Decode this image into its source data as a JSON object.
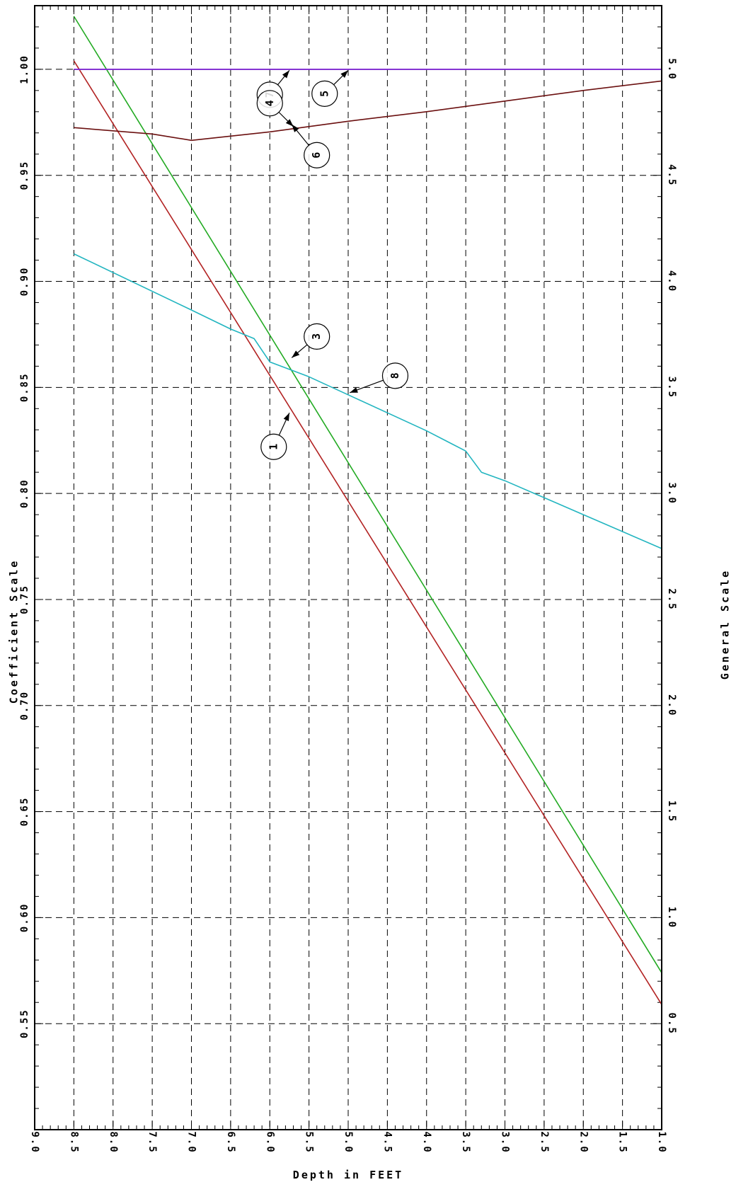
{
  "chart_data": {
    "type": "line",
    "orientation": "rotated",
    "xlabel": "Depth in FEET",
    "ylabel_left": "Coefficient Scale",
    "ylabel_right": "General Scale",
    "xlim": [
      1.0,
      9.0
    ],
    "ylim_left": [
      0.5,
      1.03
    ],
    "ylim_right": [
      0.0,
      5.3
    ],
    "x_ticks": [
      "9.0",
      "8.5",
      "8.0",
      "7.5",
      "7.0",
      "6.5",
      "6.0",
      "5.5",
      "5.0",
      "4.5",
      "4.0",
      "3.5",
      "3.0",
      "2.5",
      "2.0",
      "1.5",
      "1.0"
    ],
    "left_ticks": [
      "0.55",
      "0.60",
      "0.65",
      "0.70",
      "0.75",
      "0.80",
      "0.85",
      "0.90",
      "0.95",
      "1.00"
    ],
    "right_ticks": [
      "0.5",
      "1.0",
      "1.5",
      "2.0",
      "2.5",
      "3.0",
      "3.5",
      "4.0",
      "4.5",
      "5.0"
    ],
    "grid": true,
    "series": [
      {
        "marker": "1",
        "color": "#b22222",
        "scale": "coefficient",
        "x": [
          8.5,
          1.0
        ],
        "y": [
          1.004,
          0.559
        ]
      },
      {
        "marker": "3",
        "color": "#22aa22",
        "scale": "coefficient",
        "x": [
          8.5,
          1.0
        ],
        "y": [
          1.025,
          0.574
        ]
      },
      {
        "marker": "8",
        "color": "#22b5c0",
        "scale": "coefficient",
        "x": [
          8.5,
          7.0,
          6.5,
          6.2,
          6.0,
          5.5,
          5.0,
          4.0,
          3.5,
          3.3,
          3.0,
          2.0,
          1.0
        ],
        "y": [
          0.913,
          0.8865,
          0.8775,
          0.873,
          0.862,
          0.855,
          0.8465,
          0.8295,
          0.82,
          0.81,
          0.806,
          0.79,
          0.774
        ]
      },
      {
        "marker": "6",
        "color": "#6b1010",
        "scale": "coefficient",
        "x": [
          8.5,
          7.5,
          7.0,
          6.0,
          5.0,
          4.0,
          3.0,
          2.0,
          1.0
        ],
        "y": [
          0.9725,
          0.9695,
          0.9665,
          0.9705,
          0.9755,
          0.98,
          0.985,
          0.99,
          0.9945
        ]
      },
      {
        "marker": "4",
        "color": "#1a1a1a",
        "scale": "coefficient",
        "x": [
          8.5,
          1.0
        ],
        "y": [
          1.0,
          1.0
        ]
      },
      {
        "marker": "5",
        "color": "#6a3da0",
        "scale": "coefficient",
        "x": [
          8.5,
          1.0
        ],
        "y": [
          1.0,
          1.0
        ]
      },
      {
        "marker": "7",
        "color": "#8a2be2",
        "scale": "coefficient",
        "x": [
          8.5,
          1.0
        ],
        "y": [
          1.0,
          1.0
        ]
      }
    ],
    "annotations": [
      {
        "label": "1",
        "x": 5.95,
        "y": 0.822,
        "point_x": 5.75,
        "point_y": 0.838
      },
      {
        "label": "3",
        "x": 5.4,
        "y": 0.874,
        "point_x": 5.72,
        "point_y": 0.864
      },
      {
        "label": "8",
        "x": 4.4,
        "y": 0.8555,
        "point_x": 4.98,
        "point_y": 0.8475
      },
      {
        "label": "5",
        "x": 5.3,
        "y": 0.9885,
        "point_x": 5.0,
        "point_y": 0.9995
      },
      {
        "label": "7",
        "x": 6.0,
        "y": 0.988,
        "point_x": 5.75,
        "point_y": 0.9995
      },
      {
        "label": "4",
        "x": 6.0,
        "y": 0.984,
        "point_x": 5.7,
        "point_y": 0.973
      },
      {
        "label": "6",
        "x": 5.4,
        "y": 0.9595,
        "point_x": 5.72,
        "point_y": 0.974
      }
    ]
  }
}
